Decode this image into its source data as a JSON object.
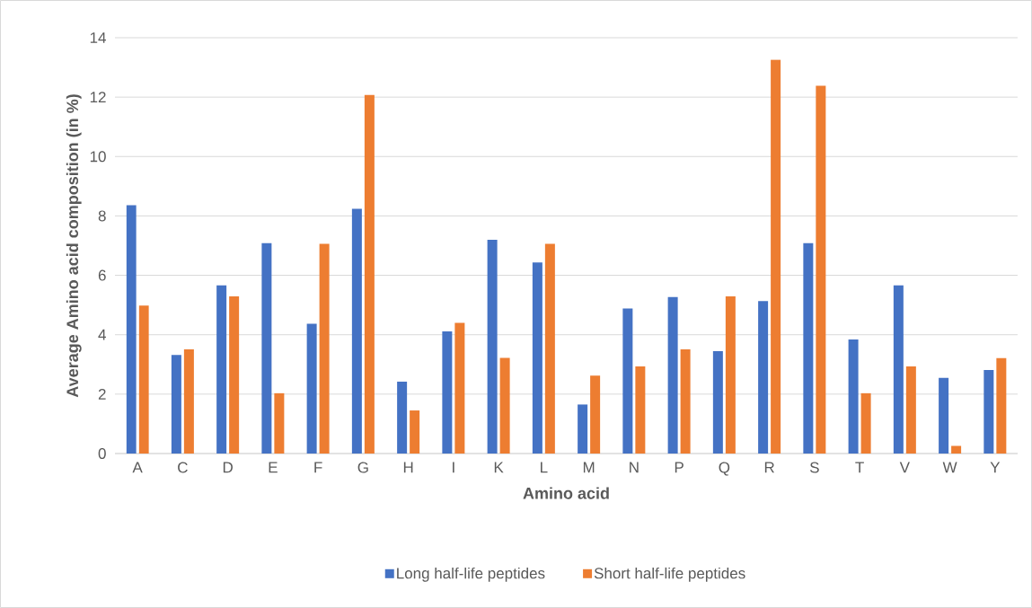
{
  "chart_data": {
    "type": "bar",
    "xlabel": "Amino acid",
    "ylabel": "Average Amino acid composition (in %)",
    "categories": [
      "A",
      "C",
      "D",
      "E",
      "F",
      "G",
      "H",
      "I",
      "K",
      "L",
      "M",
      "N",
      "P",
      "Q",
      "R",
      "S",
      "T",
      "V",
      "W",
      "Y"
    ],
    "series": [
      {
        "name": "Long half-life peptides",
        "color": "#4472c4",
        "values": [
          8.36,
          3.32,
          5.66,
          7.08,
          4.37,
          8.24,
          2.42,
          4.11,
          7.2,
          6.43,
          1.65,
          4.88,
          5.27,
          3.45,
          5.13,
          7.08,
          3.84,
          5.66,
          2.55,
          2.81
        ]
      },
      {
        "name": "Short half-life peptides",
        "color": "#ed7d31",
        "values": [
          4.98,
          3.51,
          5.29,
          2.03,
          7.06,
          12.07,
          1.45,
          4.4,
          3.22,
          7.06,
          2.62,
          2.93,
          3.51,
          5.29,
          13.26,
          12.38,
          2.03,
          2.93,
          0.26,
          3.21
        ]
      }
    ],
    "ylim": [
      0,
      14
    ],
    "yticks": [
      0,
      2,
      4,
      6,
      8,
      10,
      12,
      14
    ],
    "grid": "y",
    "legend": "bottom"
  }
}
